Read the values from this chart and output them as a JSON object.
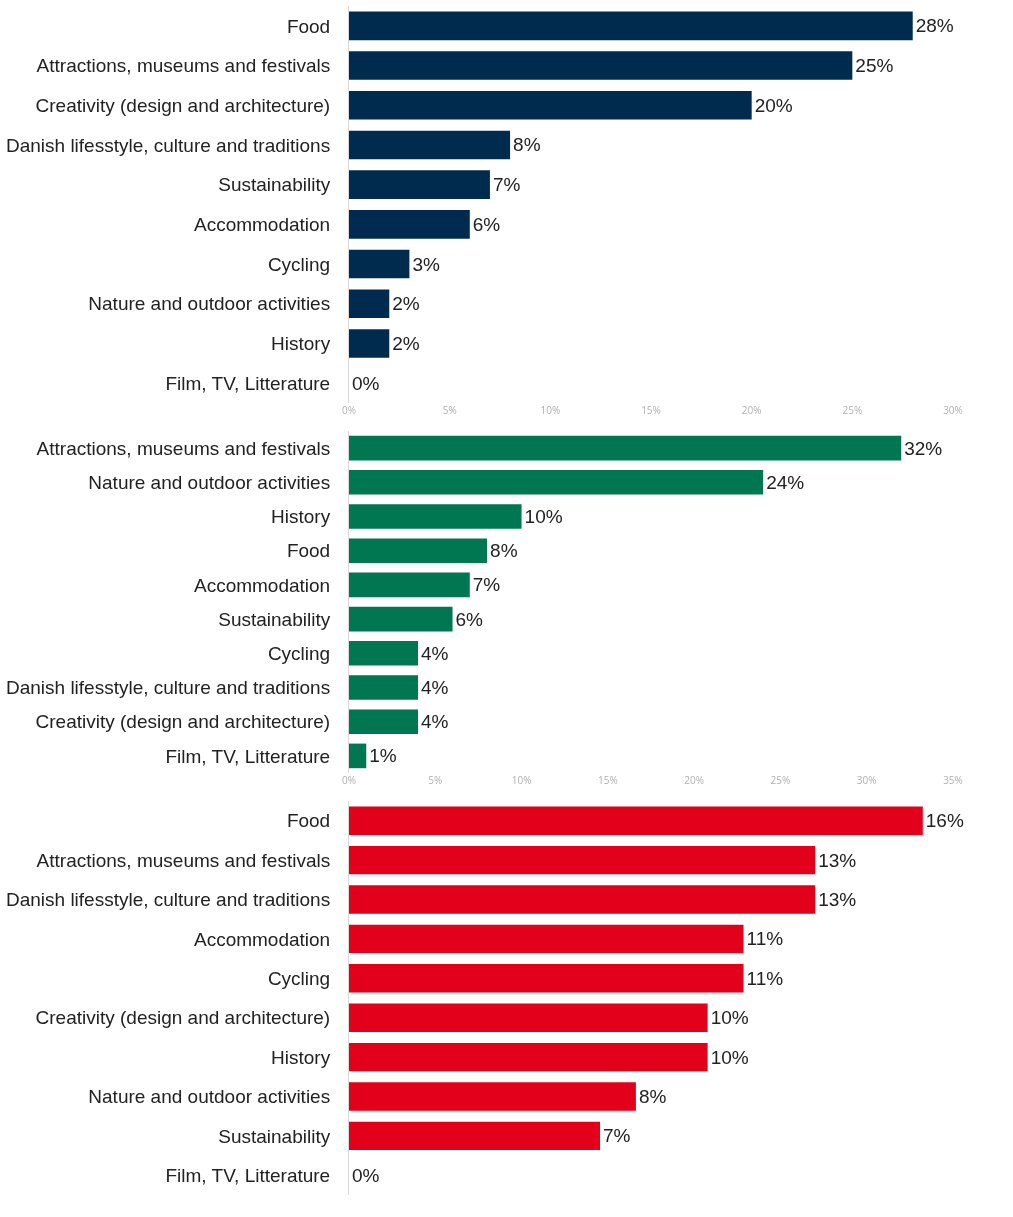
{
  "chart_data": [
    {
      "type": "bar",
      "orientation": "horizontal",
      "categories": [
        "Food",
        "Attractions, museums and festivals",
        "Creativity (design and architecture)",
        "Danish lifesstyle, culture and traditions",
        "Sustainability",
        "Accommodation",
        "Cycling",
        "Nature and outdoor activities",
        "History",
        "Film, TV, Litterature"
      ],
      "values": [
        28,
        25,
        20,
        8,
        7,
        6,
        3,
        2,
        2,
        0
      ],
      "value_labels": [
        "28%",
        "25%",
        "20%",
        "8%",
        "7%",
        "6%",
        "3%",
        "2%",
        "2%",
        "0%"
      ],
      "color": "#002b4f",
      "xlim": [
        0,
        30
      ],
      "xticks": [
        {
          "value": 0,
          "label": "0%"
        },
        {
          "value": 5,
          "label": "5%"
        },
        {
          "value": 10,
          "label": "10%"
        },
        {
          "value": 15,
          "label": "15%"
        },
        {
          "value": 20,
          "label": "20%"
        },
        {
          "value": 25,
          "label": "25%"
        },
        {
          "value": 30,
          "label": "30%"
        }
      ],
      "grid": false
    },
    {
      "type": "bar",
      "orientation": "horizontal",
      "categories": [
        "Attractions, museums and festivals",
        "Nature and outdoor activities",
        "History",
        "Food",
        "Accommodation",
        "Sustainability",
        "Cycling",
        "Danish lifesstyle, culture and traditions",
        "Creativity (design and architecture)",
        "Film, TV, Litterature"
      ],
      "values": [
        32,
        24,
        10,
        8,
        7,
        6,
        4,
        4,
        4,
        1
      ],
      "value_labels": [
        "32%",
        "24%",
        "10%",
        "8%",
        "7%",
        "6%",
        "4%",
        "4%",
        "4%",
        "1%"
      ],
      "color": "#007651",
      "xlim": [
        0,
        35
      ],
      "xticks": [
        {
          "value": 0,
          "label": "0%"
        },
        {
          "value": 5,
          "label": "5%"
        },
        {
          "value": 10,
          "label": "10%"
        },
        {
          "value": 15,
          "label": "15%"
        },
        {
          "value": 20,
          "label": "20%"
        },
        {
          "value": 25,
          "label": "25%"
        },
        {
          "value": 30,
          "label": "30%"
        },
        {
          "value": 35,
          "label": "35%"
        }
      ],
      "grid": false
    },
    {
      "type": "bar",
      "orientation": "horizontal",
      "categories": [
        "Food",
        "Attractions, museums and festivals",
        "Danish lifesstyle, culture and traditions",
        "Accommodation",
        "Cycling",
        "Creativity (design and architecture)",
        "History",
        "Nature and outdoor activities",
        "Sustainability",
        "Film, TV, Litterature"
      ],
      "values": [
        16,
        13,
        13,
        11,
        11,
        10,
        10,
        8,
        7,
        0
      ],
      "value_labels": [
        "16%",
        "13%",
        "13%",
        "11%",
        "11%",
        "10%",
        "10%",
        "8%",
        "7%",
        "0%"
      ],
      "color": "#e2001a",
      "tick_labels": "y",
      "grid": false
    }
  ]
}
